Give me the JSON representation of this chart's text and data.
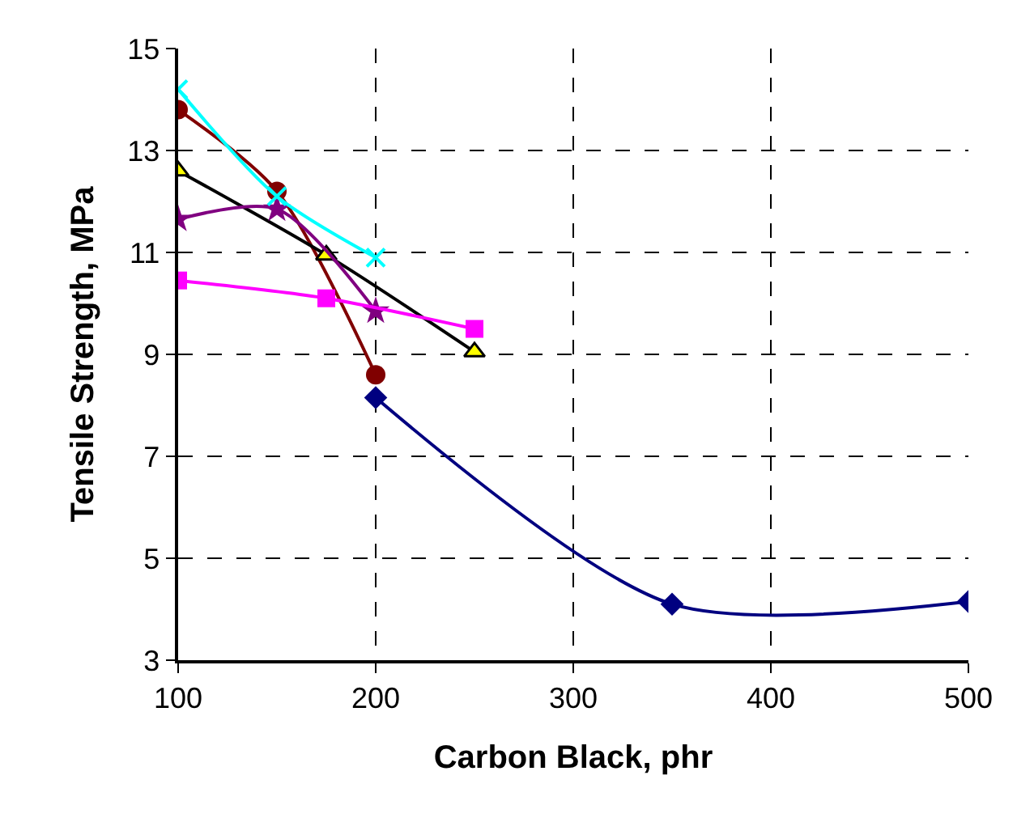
{
  "chart_data": {
    "type": "line",
    "xlabel": "Carbon Black, phr",
    "ylabel": "Tensile Strength, MPa",
    "xlim": [
      100,
      500
    ],
    "xticks": [
      100,
      200,
      300,
      400,
      500
    ],
    "ylim": [
      3,
      15
    ],
    "yticks": [
      3,
      5,
      7,
      9,
      11,
      13,
      15
    ],
    "grid": true,
    "line_style": "solid",
    "series": [
      {
        "color": "#000080",
        "marker": "diamond",
        "x": [
          200,
          350,
          500
        ],
        "values": [
          8.15,
          4.1,
          4.15
        ]
      },
      {
        "color": "#800000",
        "marker": "circle",
        "x": [
          100,
          150,
          200
        ],
        "values": [
          13.8,
          12.2,
          8.6
        ]
      },
      {
        "color": "#000000",
        "colors": [
          "#ffff00",
          "#ffff00",
          "#ffff00"
        ],
        "marker": "triangle",
        "x": [
          100,
          175,
          250
        ],
        "values": [
          12.6,
          10.95,
          9.05
        ]
      },
      {
        "color": "#800080",
        "marker": "star",
        "x": [
          100,
          150,
          200
        ],
        "values": [
          11.65,
          11.85,
          9.85
        ]
      },
      {
        "color": "#ff00ff",
        "marker": "square",
        "x": [
          100,
          175,
          250
        ],
        "values": [
          10.45,
          10.1,
          9.5
        ]
      },
      {
        "color": "#00ffff",
        "marker": "cross",
        "x": [
          100,
          150,
          200
        ],
        "values": [
          14.2,
          12.1,
          10.9
        ]
      }
    ]
  }
}
